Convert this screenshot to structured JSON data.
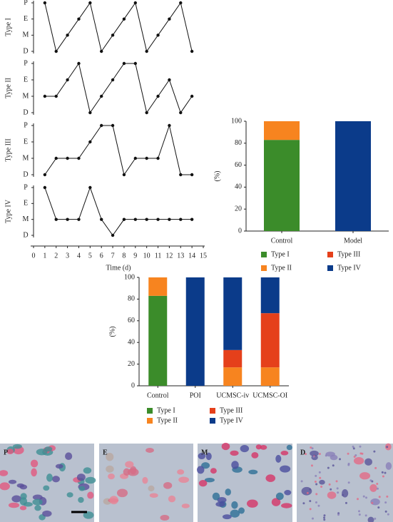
{
  "chart_data": [
    {
      "type": "line",
      "ylabel": "Type I",
      "x": [
        1,
        2,
        3,
        4,
        5,
        6,
        7,
        8,
        9,
        10,
        11,
        12,
        13,
        14
      ],
      "values": [
        3,
        0,
        1,
        2,
        3,
        0,
        1,
        2,
        3,
        0,
        1,
        2,
        3,
        0
      ],
      "color": "#111111",
      "xlim": [
        0,
        15
      ],
      "ylim": [
        0,
        3
      ],
      "yticks": [
        {
          "value": 0,
          "label": "D"
        },
        {
          "value": 1,
          "label": "M"
        },
        {
          "value": 2,
          "label": "E"
        },
        {
          "value": 3,
          "label": "P"
        }
      ]
    },
    {
      "type": "line",
      "ylabel": "Type II",
      "x": [
        1,
        2,
        3,
        4,
        5,
        6,
        7,
        8,
        9,
        10,
        11,
        12,
        13,
        14
      ],
      "values": [
        1,
        1,
        2,
        3,
        0,
        1,
        2,
        3,
        3,
        0,
        1,
        2,
        0,
        1
      ],
      "color": "#111111",
      "xlim": [
        0,
        15
      ],
      "ylim": [
        0,
        3
      ],
      "yticks": [
        {
          "value": 0,
          "label": "D"
        },
        {
          "value": 1,
          "label": "M"
        },
        {
          "value": 2,
          "label": "E"
        },
        {
          "value": 3,
          "label": "P"
        }
      ]
    },
    {
      "type": "line",
      "ylabel": "Type III",
      "x": [
        1,
        2,
        3,
        4,
        5,
        6,
        7,
        8,
        9,
        10,
        11,
        12,
        13,
        14
      ],
      "values": [
        0,
        1,
        1,
        1,
        2,
        3,
        3,
        0,
        1,
        1,
        1,
        3,
        0,
        0
      ],
      "color": "#111111",
      "xlim": [
        0,
        15
      ],
      "ylim": [
        0,
        3
      ],
      "yticks": [
        {
          "value": 0,
          "label": "D"
        },
        {
          "value": 1,
          "label": "M"
        },
        {
          "value": 2,
          "label": "E"
        },
        {
          "value": 3,
          "label": "P"
        }
      ]
    },
    {
      "type": "line",
      "ylabel": "Type IV",
      "x": [
        1,
        2,
        3,
        4,
        5,
        6,
        7,
        8,
        9,
        10,
        11,
        12,
        13,
        14
      ],
      "values": [
        3,
        1,
        1,
        1,
        3,
        1,
        0,
        1,
        1,
        1,
        1,
        1,
        1,
        1
      ],
      "color": "#111111",
      "xlim": [
        0,
        15
      ],
      "ylim": [
        0,
        3
      ],
      "yticks": [
        {
          "value": 0,
          "label": "D"
        },
        {
          "value": 1,
          "label": "M"
        },
        {
          "value": 2,
          "label": "E"
        },
        {
          "value": 3,
          "label": "P"
        }
      ],
      "xticks": [
        0,
        1,
        2,
        3,
        4,
        5,
        6,
        7,
        8,
        9,
        10,
        11,
        12,
        13,
        14,
        15
      ],
      "xlabel": "Time (d)"
    },
    {
      "type": "bar",
      "stacked": true,
      "ylabel": "(%)",
      "categories": [
        "Control",
        "Model"
      ],
      "ylim": [
        0,
        100
      ],
      "yticks": [
        0,
        20,
        40,
        60,
        80,
        100
      ],
      "series": [
        {
          "name": "Type I",
          "color": "#3b8c2a",
          "values": [
            83,
            0
          ]
        },
        {
          "name": "Type II",
          "color": "#f7841f",
          "values": [
            17,
            0
          ]
        },
        {
          "name": "Type III",
          "color": "#e5401b",
          "values": [
            0,
            0
          ]
        },
        {
          "name": "Type IV",
          "color": "#0b3b8a",
          "values": [
            0,
            100
          ]
        }
      ]
    },
    {
      "type": "bar",
      "stacked": true,
      "ylabel": "(%)",
      "categories": [
        "Control",
        "POI",
        "UCMSC-iv",
        "UCMSC-OI"
      ],
      "ylim": [
        0,
        100
      ],
      "yticks": [
        0,
        20,
        40,
        60,
        80,
        100
      ],
      "series": [
        {
          "name": "Type I",
          "color": "#3b8c2a",
          "values": [
            83,
            0,
            0,
            0
          ]
        },
        {
          "name": "Type II",
          "color": "#f7841f",
          "values": [
            17,
            0,
            17,
            17
          ]
        },
        {
          "name": "Type III",
          "color": "#e5401b",
          "values": [
            0,
            0,
            16,
            50
          ]
        },
        {
          "name": "Type IV",
          "color": "#0b3b8a",
          "values": [
            0,
            100,
            67,
            33
          ]
        }
      ]
    }
  ],
  "micrographs": {
    "labels": [
      "P",
      "E",
      "M",
      "D"
    ]
  }
}
